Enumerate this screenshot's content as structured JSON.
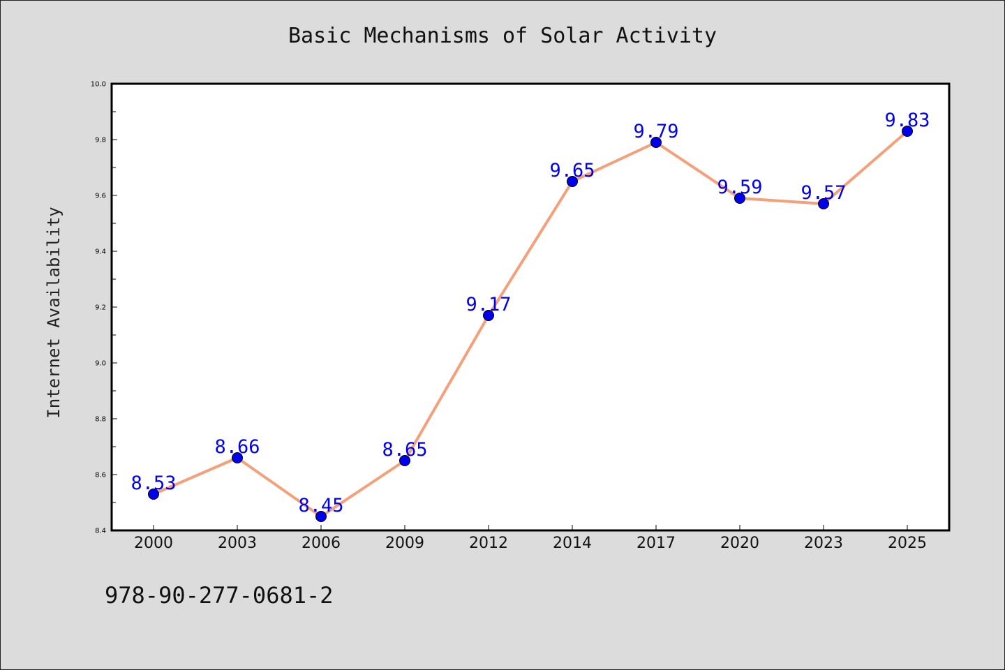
{
  "chart_data": {
    "type": "line",
    "title": "Basic Mechanisms of Solar Activity",
    "ylabel": "Internet Availability",
    "xlabel": "",
    "categories": [
      "2000",
      "2003",
      "2006",
      "2009",
      "2012",
      "2014",
      "2017",
      "2020",
      "2023",
      "2025"
    ],
    "series": [
      {
        "values": [
          8.53,
          8.66,
          8.45,
          8.65,
          9.17,
          9.65,
          9.79,
          9.59,
          9.57,
          9.83
        ],
        "data_labels": [
          "8.53",
          "8.66",
          "8.45",
          "8.65",
          "9.17",
          "9.65",
          "9.79",
          "9.59",
          "9.57",
          "9.83"
        ]
      }
    ],
    "ylim": [
      8.4,
      10.0
    ],
    "yticks": [
      "8.4",
      "8.6",
      "8.8",
      "9.0",
      "9.2",
      "9.4",
      "9.6",
      "9.8",
      "10.0"
    ],
    "grid": false,
    "legend": "none",
    "colors": {
      "line": "#f4a07a",
      "marker": "#0000ee",
      "label": "#0000ee",
      "background": "#dcdcdc",
      "plot_background": "#ffffff"
    }
  },
  "footer": {
    "code": "978-90-277-0681-2"
  }
}
